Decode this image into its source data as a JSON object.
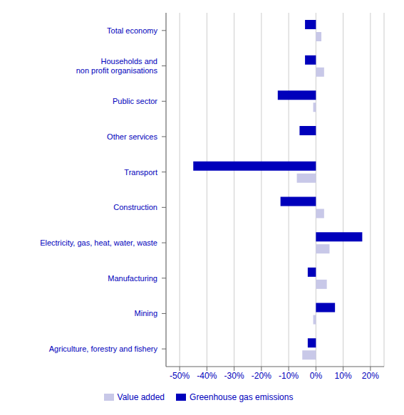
{
  "chart_data": {
    "type": "bar",
    "orientation": "horizontal",
    "categories": [
      "Agriculture, forestry and fishery",
      "Mining",
      "Manufacturing",
      "Electricity, gas, heat, water, waste",
      "Construction",
      "Transport",
      "Other services",
      "Public sector",
      "Households and\nnon profit organisations",
      "Total economy"
    ],
    "series": [
      {
        "name": "Greenhouse gas emissions",
        "color": "#0000bb",
        "values": [
          -3,
          7,
          -3,
          17,
          -13,
          -45,
          -6,
          -14,
          -4,
          -4
        ]
      },
      {
        "name": "Value added",
        "color": "#c8c8e8",
        "values": [
          -5,
          -1,
          4,
          5,
          3,
          -7,
          0,
          -1,
          3,
          2
        ]
      }
    ],
    "xlim": [
      -55,
      25
    ],
    "xticks": [
      {
        "value": -50,
        "label": "-50%"
      },
      {
        "value": -40,
        "label": "-40%"
      },
      {
        "value": -30,
        "label": "-30%"
      },
      {
        "value": -20,
        "label": "-20%"
      },
      {
        "value": -10,
        "label": "-10%"
      },
      {
        "value": 0,
        "label": "0%"
      },
      {
        "value": 10,
        "label": "10%"
      },
      {
        "value": 20,
        "label": "20%"
      }
    ],
    "grid": true
  }
}
